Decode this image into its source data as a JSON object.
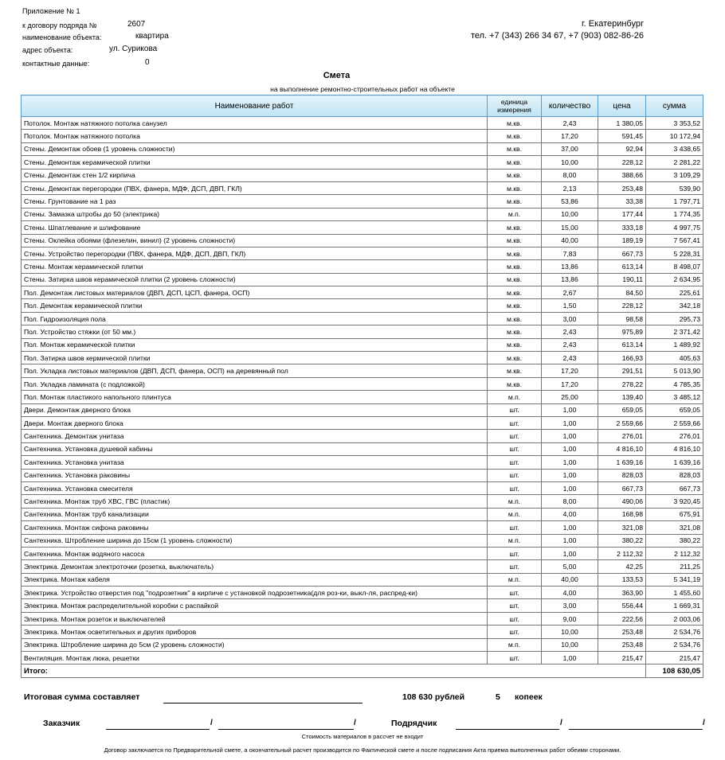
{
  "header": {
    "appendix": "Приложение № 1",
    "contract_label": "к договору подряда №",
    "contract_no": "2607",
    "object_label": "наименование объекта:",
    "object": "квартира",
    "address_label": "адрес объекта:",
    "address": "ул. Сурикова",
    "contacts_label": "контактные данные:",
    "contacts": "0",
    "city": "г. Екатеринбург",
    "phones": "тел. +7 (343) 266 34 67, +7 (903) 082-86-26"
  },
  "title": "Смета",
  "subtitle": "на выполнение ремонтно-строительных работ на объекте",
  "table": {
    "columns": [
      "Наименование работ",
      "единица измерения",
      "количество",
      "цена",
      "сумма"
    ],
    "rows": [
      [
        "Потолок. Монтаж натяжного потолка санузел",
        "м.кв.",
        "2,43",
        "1 380,05",
        "3 353,52"
      ],
      [
        "Потолок. Монтаж натяжного потолка",
        "м.кв.",
        "17,20",
        "591,45",
        "10 172,94"
      ],
      [
        "Стены. Демонтаж обоев (1 уровень сложности)",
        "м.кв.",
        "37,00",
        "92,94",
        "3 438,65"
      ],
      [
        "Стены. Демонтаж керамической плитки",
        "м.кв.",
        "10,00",
        "228,12",
        "2 281,22"
      ],
      [
        "Стены. Демонтаж стен   1/2 кирпича",
        "м.кв.",
        "8,00",
        "388,66",
        "3 109,29"
      ],
      [
        "Стены. Демонтаж перегородки (ПВХ, фанера, МДФ, ДСП, ДВП, ГКЛ)",
        "м.кв.",
        "2,13",
        "253,48",
        "539,90"
      ],
      [
        "Стены. Грунтование на 1 раз",
        "м.кв.",
        "53,86",
        "33,38",
        "1 797,71"
      ],
      [
        "Стены. Замазка штробы до 50 (электрика)",
        "м.п.",
        "10,00",
        "177,44",
        "1 774,35"
      ],
      [
        "Стены. Шпатлевание и шлифование",
        "м.кв.",
        "15,00",
        "333,18",
        "4 997,75"
      ],
      [
        "Стены. Оклейка обоями (флезелин, винил) (2 уровень сложности)",
        "м.кв.",
        "40,00",
        "189,19",
        "7 567,41"
      ],
      [
        "Стены. Устройство перегородки (ПВХ, фанера, МДФ, ДСП, ДВП, ГКЛ)",
        "м.кв.",
        "7,83",
        "667,73",
        "5 228,31"
      ],
      [
        "Стены. Монтаж керамической плитки",
        "м.кв.",
        "13,86",
        "613,14",
        "8 498,07"
      ],
      [
        "Стены. Затирка швов керамической плитки (2 уровень сложности)",
        "м.кв.",
        "13,86",
        "190,11",
        "2 634,95"
      ],
      [
        "Пол. Демонтаж листовых материалов (ДВП, ДСП, ЦСП, фанера, ОСП)",
        "м.кв.",
        "2,67",
        "84,50",
        "225,61"
      ],
      [
        "Пол. Демонтаж керамической плитки",
        "м.кв.",
        "1,50",
        "228,12",
        "342,18"
      ],
      [
        "Пол. Гидроизоляция пола",
        "м.кв.",
        "3,00",
        "98,58",
        "295,73"
      ],
      [
        "Пол. Устройство стяжки (от 50 мм.)",
        "м.кв.",
        "2,43",
        "975,89",
        "2 371,42"
      ],
      [
        "Пол. Монтаж керамической плитки",
        "м.кв.",
        "2,43",
        "613,14",
        "1 489,92"
      ],
      [
        "Пол. Затирка швов кермической плитки",
        "м.кв.",
        "2,43",
        "166,93",
        "405,63"
      ],
      [
        "Пол. Укладка листовых материалов (ДВП, ДСП, фанера, ОСП) на деревянный пол",
        "м.кв.",
        "17,20",
        "291,51",
        "5 013,90"
      ],
      [
        "Пол. Укладка ламината (с подложкой)",
        "м.кв.",
        "17,20",
        "278,22",
        "4 785,35"
      ],
      [
        "Пол. Монтаж пластикого напольного плинтуса",
        "м.п.",
        "25,00",
        "139,40",
        "3 485,12"
      ],
      [
        "Двери. Демонтаж дверного блока",
        "шт.",
        "1,00",
        "659,05",
        "659,05"
      ],
      [
        "Двери. Монтаж дверного блока",
        "шт.",
        "1,00",
        "2 559,66",
        "2 559,66"
      ],
      [
        "Сантехника. Демонтаж унитаза",
        "шт.",
        "1,00",
        "276,01",
        "276,01"
      ],
      [
        "Сантехника. Установка душевой кабины",
        "шт.",
        "1,00",
        "4 816,10",
        "4 816,10"
      ],
      [
        "Сантехника. Установка унитаза",
        "шт.",
        "1,00",
        "1 639,16",
        "1 639,16"
      ],
      [
        "Сантехника. Установка раковины",
        "шт.",
        "1,00",
        "828,03",
        "828,03"
      ],
      [
        "Сантехника. Установка смесителя",
        "шт.",
        "1,00",
        "667,73",
        "667,73"
      ],
      [
        "Сантехника. Монтаж труб  ХВС, ГВС (пластик)",
        "м.п.",
        "8,00",
        "490,06",
        "3 920,45"
      ],
      [
        "Сантехника. Монтаж труб канализации",
        "м.п.",
        "4,00",
        "168,98",
        "675,91"
      ],
      [
        "Сантехника. Монтаж сифона раковины",
        "шт.",
        "1,00",
        "321,08",
        "321,08"
      ],
      [
        "Сантехника. Штробление ширина до 15см (1 уровень сложности)",
        "м.п.",
        "1,00",
        "380,22",
        "380,22"
      ],
      [
        "Сантехника. Монтаж водяного насоса",
        "шт.",
        "1,00",
        "2 112,32",
        "2 112,32"
      ],
      [
        "Электрика. Демонтаж электроточки (розетка, выключатель)",
        "шт.",
        "5,00",
        "42,25",
        "211,25"
      ],
      [
        "Электрика. Монтаж кабеля",
        "м.п.",
        "40,00",
        "133,53",
        "5 341,19"
      ],
      [
        "Электрика. Устройство отверстия под \"подрозетник\" в кирпиче с установкой подрозетника(для роз-ки, выкл-ля, распред-ки)",
        "шт.",
        "4,00",
        "363,90",
        "1 455,60"
      ],
      [
        "Электрика. Монтаж распределительной коробки с распайкой",
        "шт.",
        "3,00",
        "556,44",
        "1 669,31"
      ],
      [
        "Электрика. Монтаж розеток и выключателей",
        "шт.",
        "9,00",
        "222,56",
        "2 003,06"
      ],
      [
        "Электрика. Монтаж осветительных и других приборов",
        "шт.",
        "10,00",
        "253,48",
        "2 534,76"
      ],
      [
        "Электрика. Штробление ширина до 5см (2 уровень сложности)",
        "м.п.",
        "10,00",
        "253,48",
        "2 534,76"
      ],
      [
        "Вентиляция. Монтаж люка, решетки",
        "шт.",
        "1,00",
        "215,47",
        "215,47"
      ]
    ],
    "total_label": "Итого:",
    "total": "108 630,05"
  },
  "summary": {
    "label": "Итоговая сумма составляет",
    "rubles": "108 630 рублей",
    "kopecks": "5",
    "kopecks_label": "копеек"
  },
  "signatures": {
    "customer": "Заказчик",
    "contractor": "Подрядчик",
    "slash": "/"
  },
  "notes": {
    "materials": "Стоимость материалов в рассчет не входит",
    "contract": "Договор заключается по Предварительной смете, а окончательный расчет производится по Фактической смете и после подписания Акта приема выполненных работ обеими сторонами."
  }
}
